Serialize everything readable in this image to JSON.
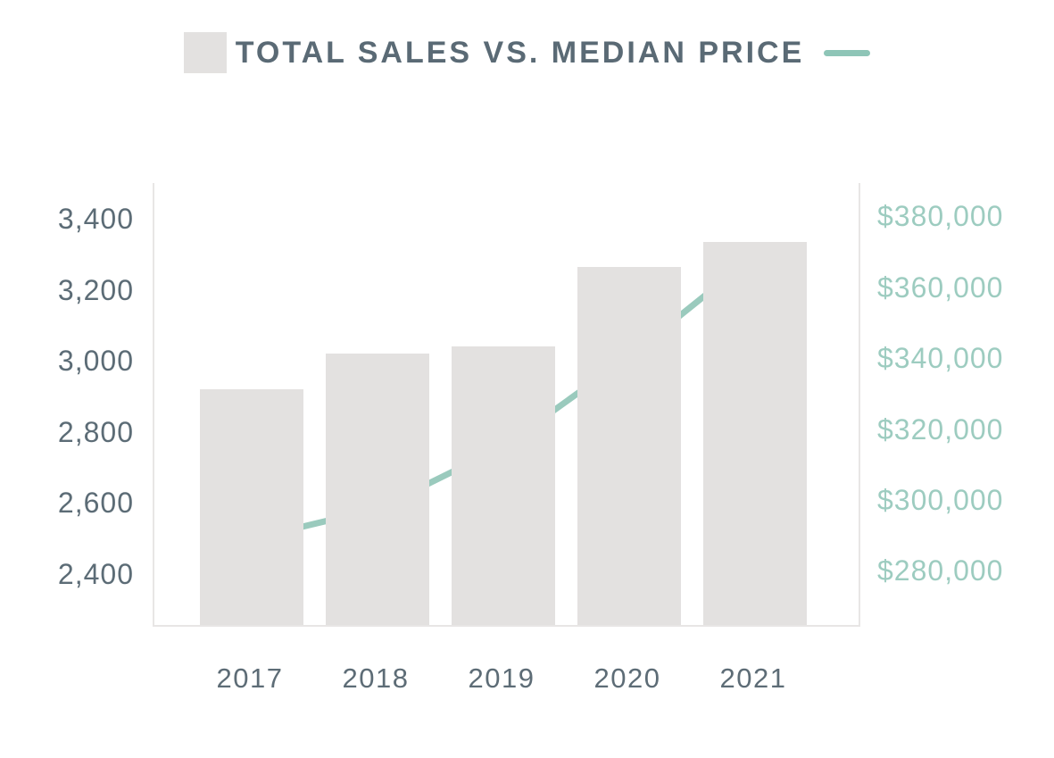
{
  "header": {
    "title": "TOTAL SALES VS. MEDIAN PRICE"
  },
  "colors": {
    "bar": "#e3e1e0",
    "line": "#9acabd",
    "marker": "#93c6b8",
    "legend_dash": "#8ec5b7",
    "title_text": "#5a6a75",
    "left_axis_text": "#5c6c76",
    "x_axis_text": "#5d6c76",
    "right_axis_text": "#9dccc0",
    "plot_border": "#e8e6e5",
    "background": "#ffffff"
  },
  "chart_data": {
    "type": "bar",
    "title": "TOTAL SALES VS. MEDIAN PRICE",
    "categories": [
      "2017",
      "2018",
      "2019",
      "2020",
      "2021"
    ],
    "series": [
      {
        "name": "Total Sales",
        "type": "bar",
        "axis": "left",
        "values": [
          2920,
          3020,
          3040,
          3265,
          3335
        ]
      },
      {
        "name": "Median Price",
        "type": "line",
        "axis": "right",
        "values": [
          289000,
          297500,
          315000,
          340500,
          369000
        ]
      }
    ],
    "left_axis": {
      "tick_labels": [
        "3,400",
        "3,200",
        "3,000",
        "2,800",
        "2,600",
        "2,400"
      ],
      "tick_values": [
        3400,
        3200,
        3000,
        2800,
        2600,
        2400
      ],
      "range": [
        2257,
        3500
      ]
    },
    "right_axis": {
      "tick_labels": [
        "$380,000",
        "$360,000",
        "$340,000",
        "$320,000",
        "$300,000",
        "$280,000"
      ],
      "tick_values": [
        380000,
        360000,
        340000,
        320000,
        300000,
        280000
      ],
      "range": [
        264700,
        389400
      ]
    },
    "xlabel": "",
    "ylabel_left": "",
    "ylabel_right": "",
    "grid": false,
    "legend_position": "top"
  }
}
